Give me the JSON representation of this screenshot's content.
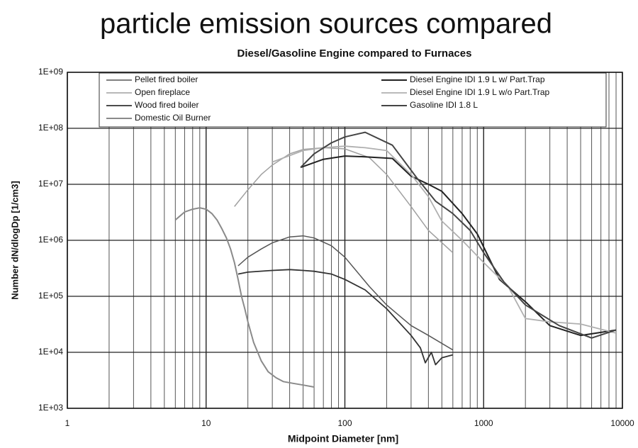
{
  "chart_data": {
    "type": "line",
    "title": "particle emission sources compared",
    "subtitle": "Diesel/Gasoline Engine compared to Furnaces",
    "x_label": "Midpoint Diameter  [nm]",
    "y_label": "Number dN/dlogDp  [1/cm3]",
    "xscale": "log",
    "yscale": "log",
    "xlim": [
      1,
      10000
    ],
    "ylim": [
      1000,
      1000000000
    ],
    "xticks": [
      1,
      10,
      100,
      1000,
      10000
    ],
    "yticks": [
      {
        "value": 1000,
        "label": "1E+03"
      },
      {
        "value": 10000,
        "label": "1E+04"
      },
      {
        "value": 100000,
        "label": "1E+05"
      },
      {
        "value": 1000000,
        "label": "1E+06"
      },
      {
        "value": 10000000,
        "label": "1E+07"
      },
      {
        "value": 100000000,
        "label": "1E+08"
      },
      {
        "value": 1000000000,
        "label": "1E+09"
      }
    ],
    "grid": true,
    "minor_grid": true,
    "legend": "top",
    "series": [
      {
        "name": "Pellet fired boiler",
        "color": "#555555",
        "width": 1.5,
        "x": [
          17,
          20,
          25,
          30,
          40,
          50,
          60,
          80,
          100,
          150,
          200,
          300,
          400,
          600
        ],
        "values": [
          350000,
          500000,
          700000,
          900000,
          1150000,
          1200000,
          1100000,
          800000,
          500000,
          150000,
          70000,
          30000,
          20000,
          11000
        ]
      },
      {
        "name": "Open fireplace",
        "color": "#a0a0a0",
        "width": 1.5,
        "x": [
          16,
          20,
          25,
          30,
          40,
          50,
          70,
          100,
          150,
          200,
          300,
          400,
          600
        ],
        "values": [
          4000000,
          8000000,
          15000000,
          22000000,
          35000000,
          42000000,
          45000000,
          43000000,
          30000000,
          15000000,
          4000000,
          1500000,
          600000
        ]
      },
      {
        "name": "Wood fired boiler",
        "color": "#333333",
        "width": 1.8,
        "x": [
          17,
          20,
          30,
          40,
          50,
          60,
          80,
          100,
          140,
          200,
          300,
          350,
          380,
          420,
          450,
          500,
          600
        ],
        "values": [
          250000,
          270000,
          290000,
          300000,
          290000,
          280000,
          250000,
          200000,
          130000,
          60000,
          20000,
          12000,
          6500,
          10000,
          6000,
          8000,
          9000
        ]
      },
      {
        "name": "Domestic Oil Burner",
        "color": "#8a8a8a",
        "width": 2,
        "x": [
          6,
          7,
          8,
          9,
          10,
          11,
          12,
          13,
          14,
          15,
          16,
          17,
          18,
          19,
          20,
          22,
          25,
          28,
          32,
          36,
          42,
          50,
          60
        ],
        "values": [
          2300000,
          3200000,
          3600000,
          3800000,
          3600000,
          3000000,
          2300000,
          1600000,
          1100000,
          700000,
          400000,
          200000,
          100000,
          60000,
          35000,
          15000,
          7000,
          4500,
          3500,
          3000,
          2800,
          2600,
          2400
        ]
      },
      {
        "name": "Diesel Engine IDI 1.9 L w/ Part.Trap",
        "color": "#222222",
        "width": 2,
        "x": [
          48,
          70,
          100,
          140,
          220,
          300,
          400,
          500,
          700,
          900,
          1300,
          2000,
          3000,
          5000,
          9000
        ],
        "values": [
          20000000,
          28000000,
          32000000,
          31000000,
          29000000,
          14000000,
          10000000,
          7500000,
          3000000,
          1300000,
          200000,
          80000,
          30000,
          20000,
          25000
        ]
      },
      {
        "name": "Diesel Engine IDI 1.9 L w/o Part.Trap",
        "color": "#b0b0b0",
        "width": 1.8,
        "x": [
          30,
          50,
          70,
          100,
          140,
          200,
          300,
          400,
          500,
          700,
          1000,
          1500,
          2000,
          3000,
          5000,
          9000
        ],
        "values": [
          25000000,
          40000000,
          45000000,
          48000000,
          45000000,
          40000000,
          15000000,
          6000000,
          2200000,
          1000000,
          400000,
          150000,
          40000,
          35000,
          32000,
          22000
        ]
      },
      {
        "name": "Gasoline IDI 1.8 L",
        "color": "#444444",
        "width": 2,
        "x": [
          48,
          60,
          80,
          100,
          140,
          220,
          330,
          450,
          600,
          800,
          1000,
          1400,
          2000,
          3500,
          6000,
          9000
        ],
        "values": [
          20000000,
          35000000,
          55000000,
          70000000,
          85000000,
          50000000,
          13000000,
          5000000,
          3000000,
          1500000,
          600000,
          180000,
          70000,
          30000,
          18000,
          25000
        ]
      }
    ]
  }
}
